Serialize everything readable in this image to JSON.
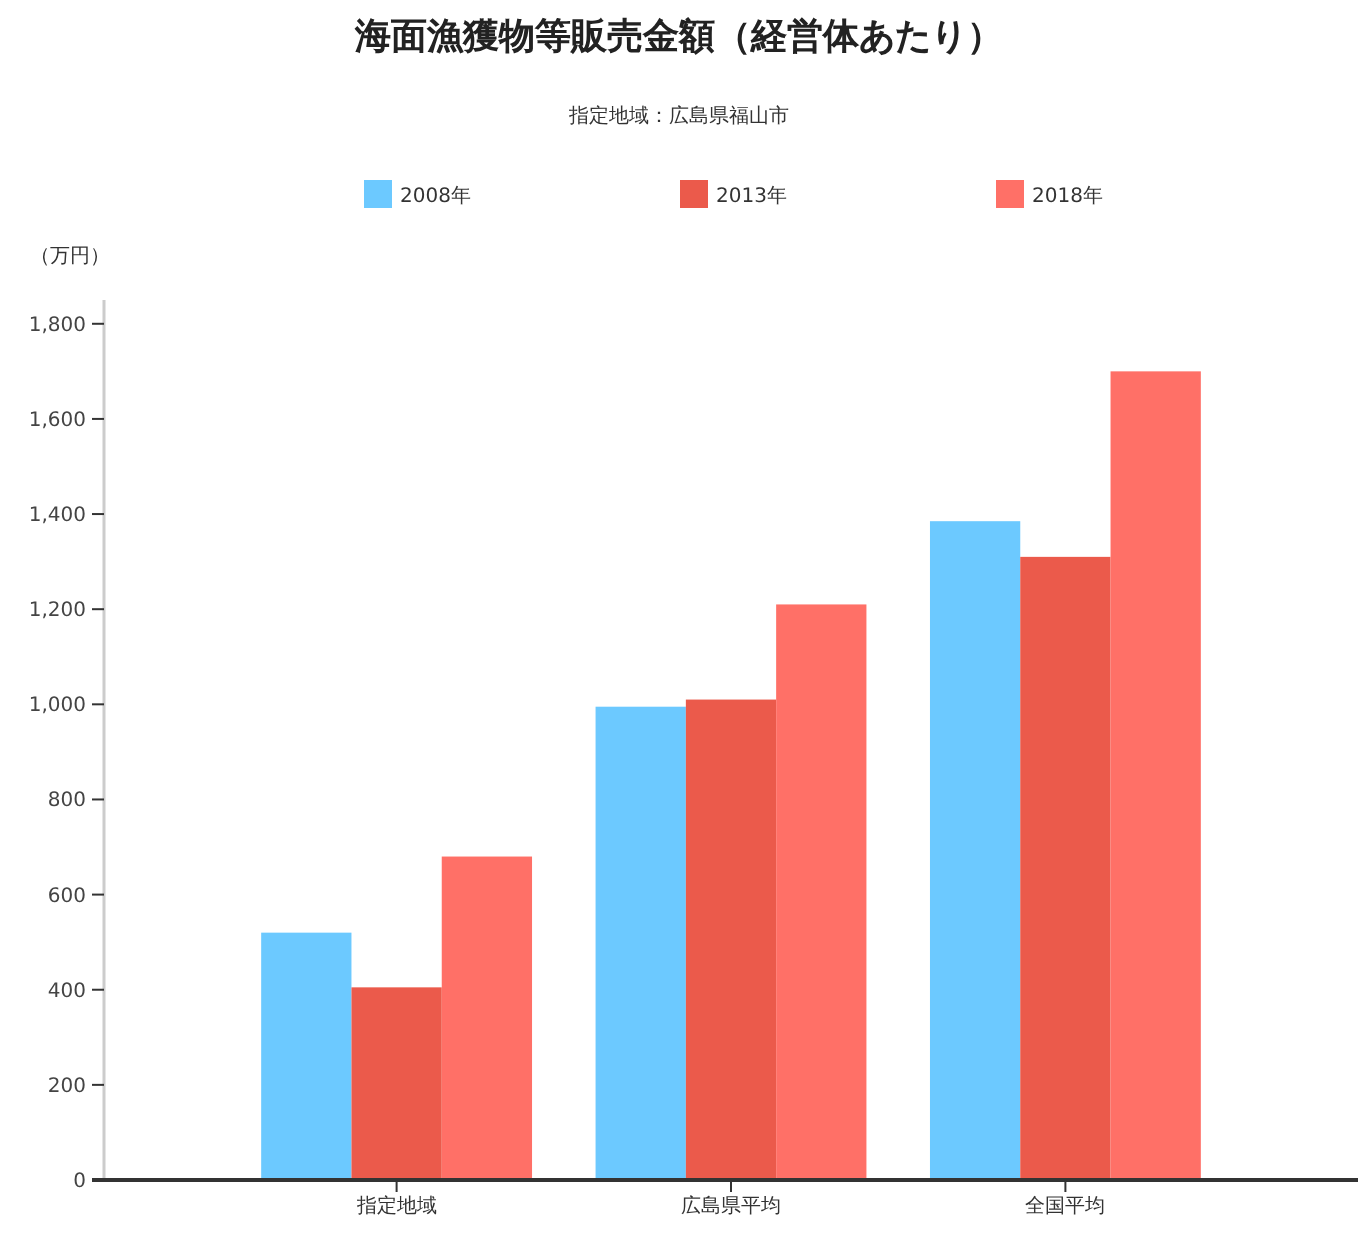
{
  "chart_data": {
    "type": "bar",
    "title": "海面漁獲物等販売金額（経営体あたり）",
    "subtitle": "指定地域：広島県福山市",
    "ylabel": "（万円）",
    "categories": [
      "指定地域",
      "広島県平均",
      "全国平均"
    ],
    "series": [
      {
        "name": "2008年",
        "color": "#6cc9ff",
        "values": [
          520,
          995,
          1385
        ]
      },
      {
        "name": "2013年",
        "color": "#eb5a4b",
        "values": [
          405,
          1010,
          1310
        ]
      },
      {
        "name": "2018年",
        "color": "#ff7067",
        "values": [
          680,
          1210,
          1700
        ]
      }
    ],
    "ylim": [
      0,
      1850
    ],
    "yticks": [
      {
        "value": 0,
        "label": "0"
      },
      {
        "value": 200,
        "label": "200"
      },
      {
        "value": 400,
        "label": "400"
      },
      {
        "value": 600,
        "label": "600"
      },
      {
        "value": 800,
        "label": "800"
      },
      {
        "value": 1000,
        "label": "1,000"
      },
      {
        "value": 1200,
        "label": "1,200"
      },
      {
        "value": 1400,
        "label": "1,400"
      },
      {
        "value": 1600,
        "label": "1,600"
      },
      {
        "value": 1800,
        "label": "1,800"
      }
    ],
    "grid": false,
    "legend": "top"
  }
}
